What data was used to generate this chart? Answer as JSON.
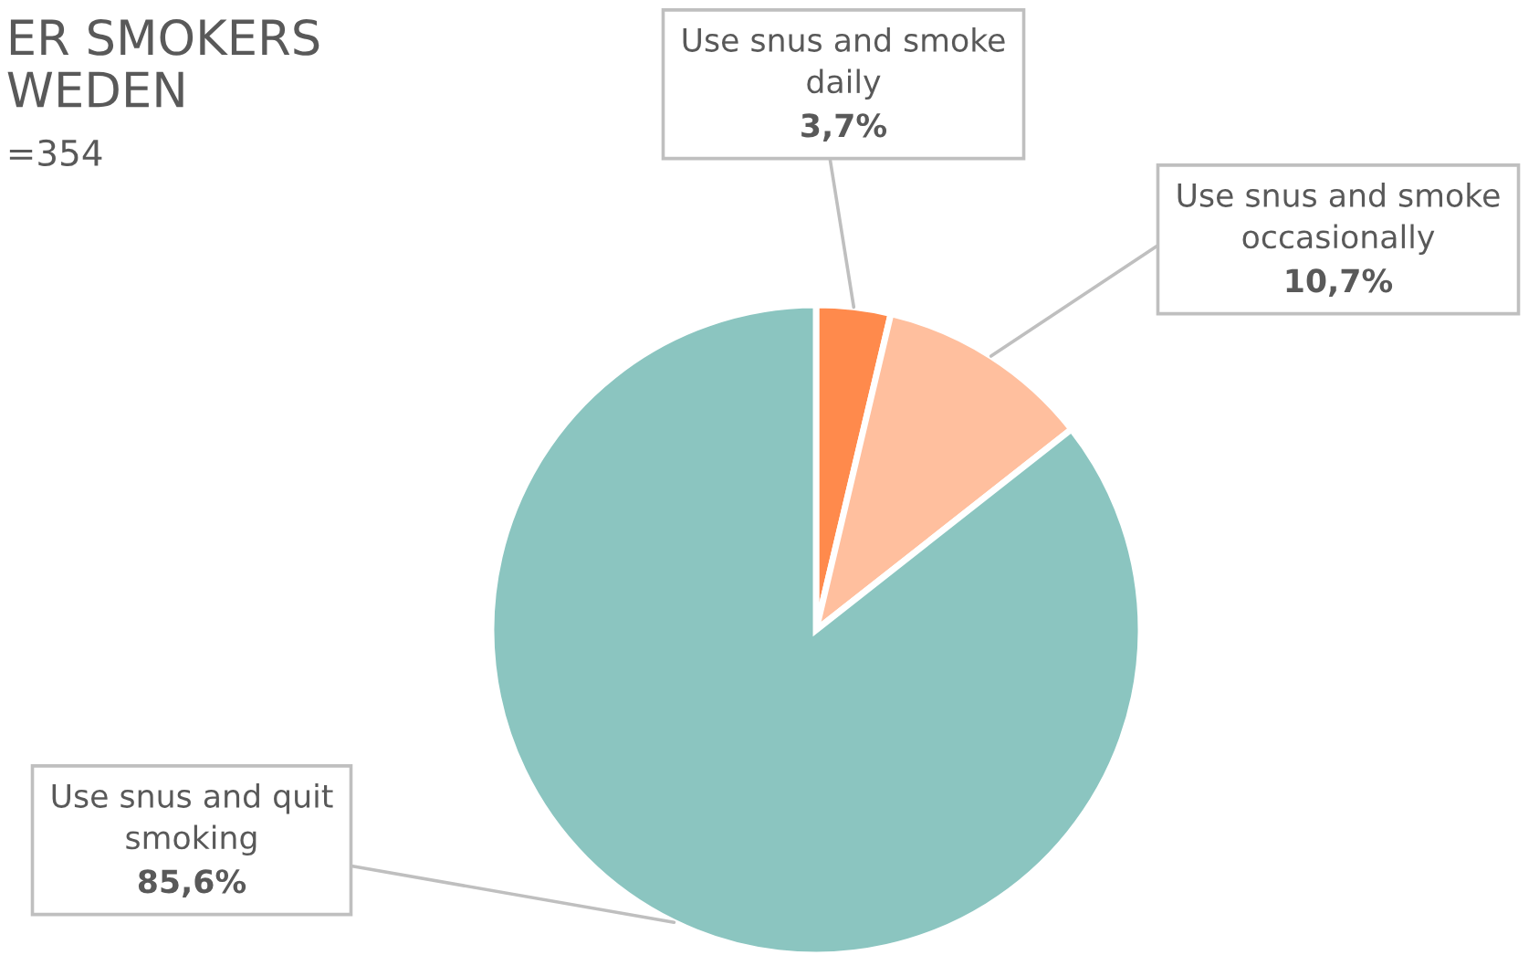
{
  "chart_data": {
    "type": "pie",
    "title": "ER SMOKERS\nWEDEN",
    "subtitle": "=354",
    "categories": [
      "Use snus and smoke\ndaily",
      "Use snus and smoke\noccasionally",
      "Use snus and quit\nsmoking"
    ],
    "values": [
      3.7,
      10.7,
      85.6
    ],
    "colors": [
      "#ff8a4c",
      "#ffbf9e",
      "#8bc5c0"
    ],
    "value_labels": [
      "3,7%",
      "10,7%",
      "85,6%"
    ]
  }
}
